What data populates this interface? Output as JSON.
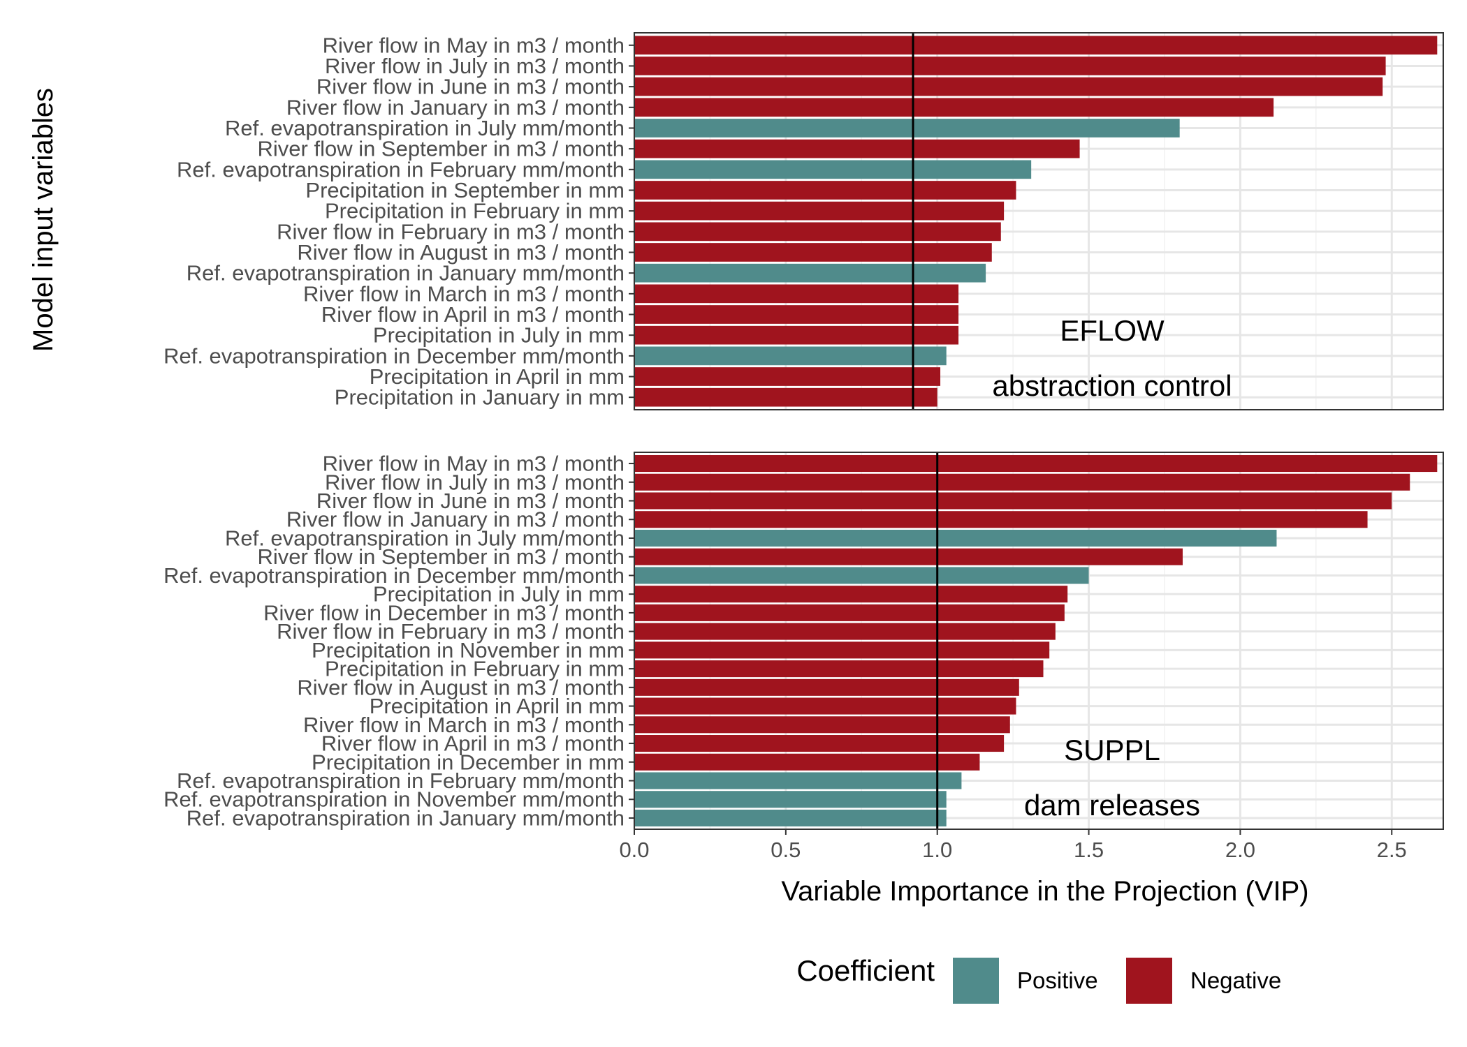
{
  "chart_data": {
    "type": "bar",
    "orientation": "horizontal",
    "xlabel": "Variable Importance in the Projection (VIP)",
    "ylabel": "Model input variables",
    "xlim": [
      0,
      2.67
    ],
    "xticks": [
      0.0,
      0.5,
      1.0,
      1.5,
      2.0,
      2.5
    ],
    "xtick_labels": [
      "0.0",
      "0.5",
      "1.0",
      "1.5",
      "2.0",
      "2.5"
    ],
    "grid": true,
    "legend": {
      "title": "Coefficient",
      "position": "bottom",
      "entries": [
        {
          "label": "Positive",
          "color": "#508B8B"
        },
        {
          "label": "Negative",
          "color": "#A0141E"
        }
      ]
    },
    "panels": [
      {
        "annotation_line1": "EFLOW",
        "annotation_line2": "abstraction control",
        "threshold": 0.92,
        "categories": [
          "River flow in May in m3 / month",
          "River flow in July in m3 / month",
          "River flow in June in m3 / month",
          "River flow in January in m3 / month",
          "Ref. evapotranspiration in July mm/month",
          "River flow in September in m3 / month",
          "Ref. evapotranspiration in February mm/month",
          "Precipitation in September in mm",
          "Precipitation in February in mm",
          "River flow in February in m3 / month",
          "River flow in August in m3 / month",
          "Ref. evapotranspiration in January mm/month",
          "River flow in March in m3 / month",
          "River flow in April in m3 / month",
          "Precipitation in July in mm",
          "Ref. evapotranspiration in December mm/month",
          "Precipitation in April in mm",
          "Precipitation in January in mm"
        ],
        "values": [
          2.65,
          2.48,
          2.47,
          2.11,
          1.8,
          1.47,
          1.31,
          1.26,
          1.22,
          1.21,
          1.18,
          1.16,
          1.07,
          1.07,
          1.07,
          1.03,
          1.01,
          1.0
        ],
        "coefficient": [
          "Negative",
          "Negative",
          "Negative",
          "Negative",
          "Positive",
          "Negative",
          "Positive",
          "Negative",
          "Negative",
          "Negative",
          "Negative",
          "Positive",
          "Negative",
          "Negative",
          "Negative",
          "Positive",
          "Negative",
          "Negative"
        ]
      },
      {
        "annotation_line1": "SUPPL",
        "annotation_line2": "dam releases",
        "threshold": 1.0,
        "categories": [
          "River flow in May in m3 / month",
          "River flow in July in m3 / month",
          "River flow in June in m3 / month",
          "River flow in January in m3 / month",
          "Ref. evapotranspiration in July mm/month",
          "River flow in September in m3 / month",
          "Ref. evapotranspiration in December mm/month",
          "Precipitation in July in mm",
          "River flow in December in m3 / month",
          "River flow in February in m3 / month",
          "Precipitation in November in mm",
          "Precipitation in February in mm",
          "River flow in August in m3 / month",
          "Precipitation in April in mm",
          "River flow in March in m3 / month",
          "River flow in April in m3 / month",
          "Precipitation in December in mm",
          "Ref. evapotranspiration in February mm/month",
          "Ref. evapotranspiration in November mm/month",
          "Ref. evapotranspiration in January mm/month"
        ],
        "values": [
          2.65,
          2.56,
          2.5,
          2.42,
          2.12,
          1.81,
          1.5,
          1.43,
          1.42,
          1.39,
          1.37,
          1.35,
          1.27,
          1.26,
          1.24,
          1.22,
          1.14,
          1.08,
          1.03,
          1.03
        ],
        "coefficient": [
          "Negative",
          "Negative",
          "Negative",
          "Negative",
          "Positive",
          "Negative",
          "Positive",
          "Negative",
          "Negative",
          "Negative",
          "Negative",
          "Negative",
          "Negative",
          "Negative",
          "Negative",
          "Negative",
          "Negative",
          "Positive",
          "Positive",
          "Positive"
        ]
      }
    ]
  }
}
